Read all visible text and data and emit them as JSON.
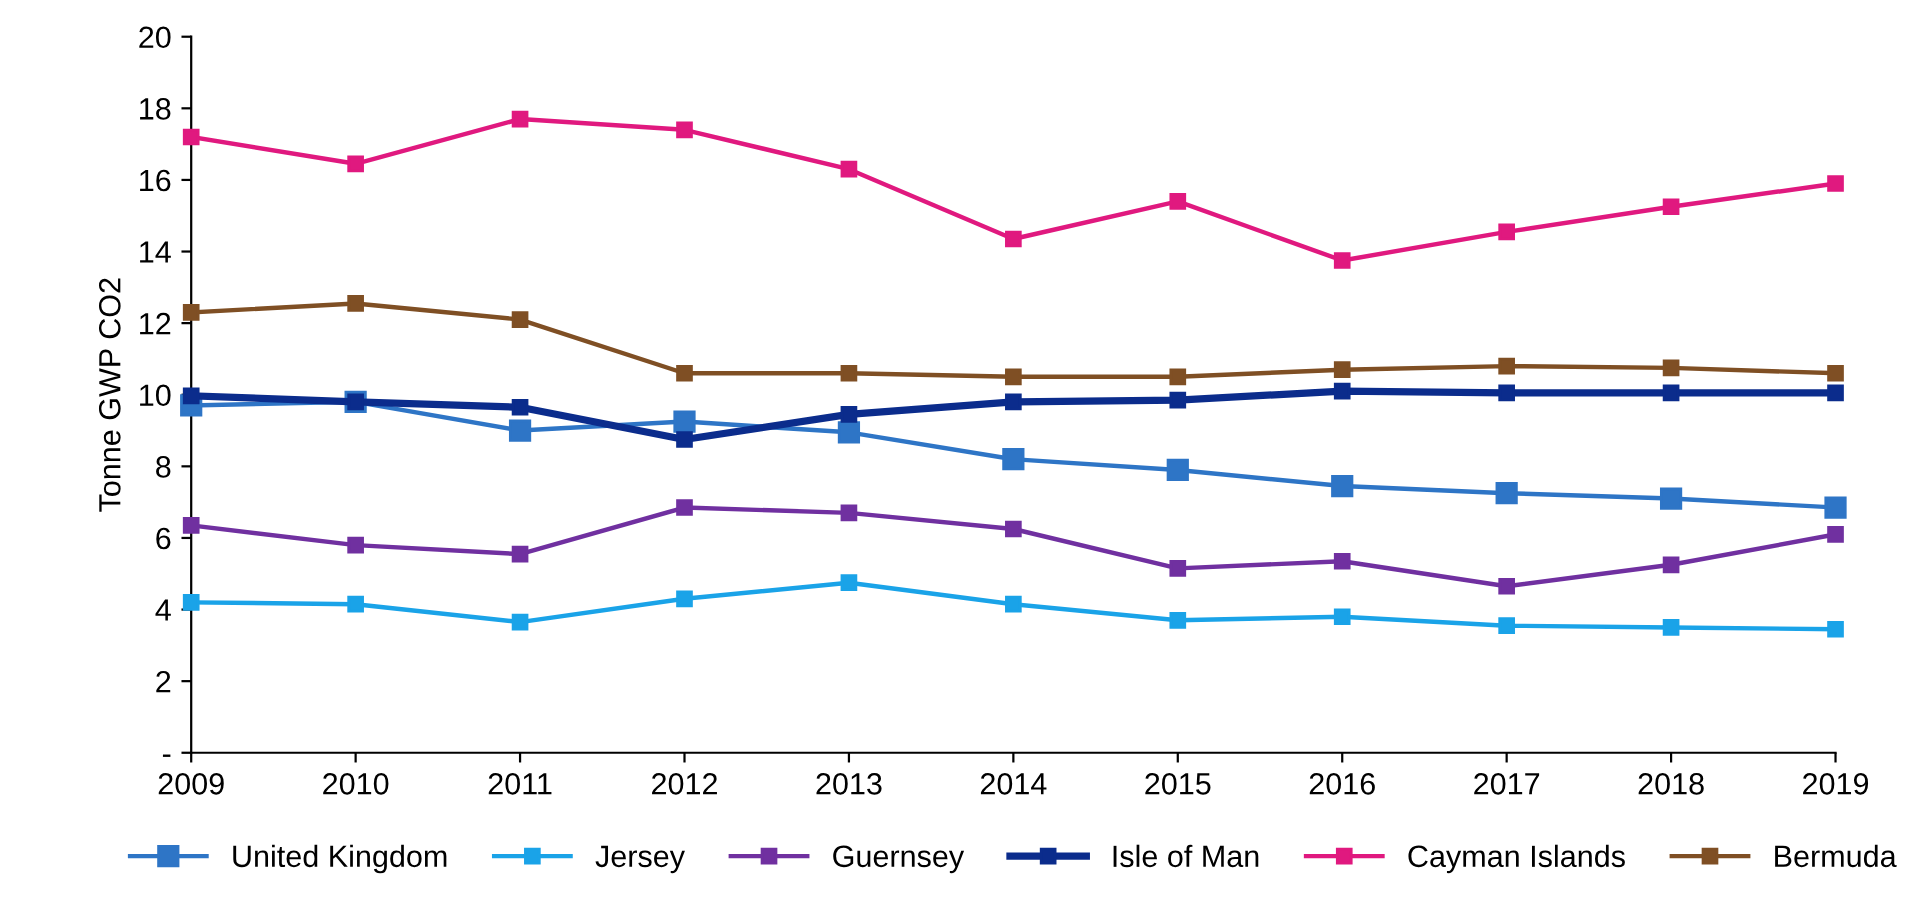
{
  "chart_data": {
    "type": "line",
    "ylabel": "Tonne GWP CO2",
    "x": [
      2009,
      2010,
      2011,
      2012,
      2013,
      2014,
      2015,
      2016,
      2017,
      2018,
      2019
    ],
    "xlim": [
      2009,
      2019
    ],
    "xticks": [
      2009,
      2010,
      2011,
      2012,
      2013,
      2014,
      2015,
      2016,
      2017,
      2018,
      2019
    ],
    "ylim": [
      0,
      20
    ],
    "yticks": [
      {
        "value": 0,
        "label": "-"
      },
      2,
      4,
      6,
      8,
      10,
      12,
      14,
      16,
      18,
      20
    ],
    "grid": false,
    "legend": "bottom",
    "marker": "square",
    "line_style": "solid",
    "series": [
      {
        "name": "United Kingdom",
        "color": "#2e75c6",
        "values": [
          9.7,
          9.8,
          9.0,
          9.25,
          8.95,
          8.2,
          7.9,
          7.45,
          7.25,
          7.1,
          6.85
        ]
      },
      {
        "name": "Jersey",
        "color": "#1aa3e8",
        "values": [
          4.2,
          4.15,
          3.65,
          4.3,
          4.75,
          4.15,
          3.7,
          3.8,
          3.55,
          3.5,
          3.45
        ]
      },
      {
        "name": "Guernsey",
        "color": "#7030a0",
        "values": [
          6.35,
          5.8,
          5.55,
          6.85,
          6.7,
          6.25,
          5.15,
          5.35,
          4.65,
          5.25,
          6.1
        ]
      },
      {
        "name": "Isle of Man",
        "color": "#0b2c8c",
        "values": [
          9.97,
          9.8,
          9.65,
          8.75,
          9.45,
          9.8,
          9.85,
          10.1,
          10.05,
          10.05,
          10.05
        ]
      },
      {
        "name": "Cayman Islands",
        "color": "#e0197f",
        "values": [
          17.2,
          16.45,
          17.7,
          17.4,
          16.3,
          14.35,
          15.4,
          13.75,
          14.55,
          15.25,
          15.9
        ]
      },
      {
        "name": "Bermuda",
        "color": "#7f4f24",
        "values": [
          12.3,
          12.55,
          12.1,
          10.6,
          10.6,
          10.5,
          10.5,
          10.7,
          10.8,
          10.75,
          10.6
        ]
      }
    ]
  }
}
